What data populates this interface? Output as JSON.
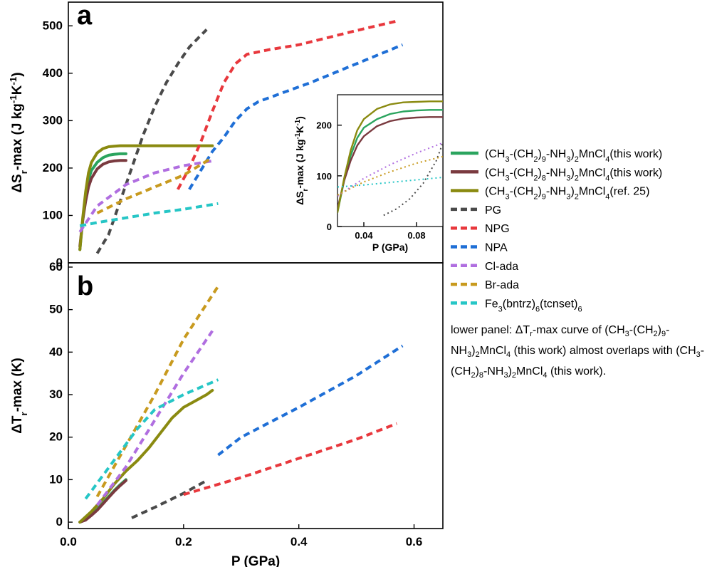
{
  "figure": {
    "note": "lower panel: ΔT_r-max curve of (CH3-(CH2)9-NH3)2MnCl4 (this work) almost overlaps with (CH3-(CH2)8-NH3)2MnCl4 (this work)."
  },
  "legend": [
    {
      "label": "(CH3-(CH2)9-NH3)2MnCl4(this work)",
      "html": "(CH<sub>3</sub>-(CH<sub>2</sub>)<sub>9</sub>-NH<sub>3</sub>)<sub>2</sub>MnCl<sub>4</sub>(this work)",
      "color": "#2aa45e",
      "dash": "solid"
    },
    {
      "label": "(CH3-(CH2)8-NH3)2MnCl4(this work)",
      "html": "(CH<sub>3</sub>-(CH<sub>2</sub>)<sub>8</sub>-NH<sub>3</sub>)<sub>2</sub>MnCl<sub>4</sub>(this work)",
      "color": "#7a3a3f",
      "dash": "solid"
    },
    {
      "label": "(CH3-(CH2)9-NH3)2MnCl4(ref. 25)",
      "html": "(CH<sub>3</sub>-(CH<sub>2</sub>)<sub>9</sub>-NH<sub>3</sub>)<sub>2</sub>MnCl<sub>4</sub>(ref. 25)",
      "color": "#8a8a10",
      "dash": "solid"
    },
    {
      "label": "PG",
      "html": "PG",
      "color": "#4a4a4a",
      "dash": "dash"
    },
    {
      "label": "NPG",
      "html": "NPG",
      "color": "#e8383d",
      "dash": "dash"
    },
    {
      "label": "NPA",
      "html": "NPA",
      "color": "#1f6fd6",
      "dash": "dash"
    },
    {
      "label": "Cl-ada",
      "html": "Cl-ada",
      "color": "#b06ee0",
      "dash": "dash"
    },
    {
      "label": "Br-ada",
      "html": "Br-ada",
      "color": "#c89a1e",
      "dash": "dash"
    },
    {
      "label": "Fe3(bntrz)6(tcnset)6",
      "html": "Fe<sub>3</sub>(bntrz)<sub>6</sub>(tcnset)<sub>6</sub>",
      "color": "#26c6c6",
      "dash": "dash"
    }
  ],
  "chart_data": [
    {
      "panel": "a",
      "type": "line",
      "xlabel": "",
      "ylabel": "ΔSr-max (J kg-1K-1)",
      "xlim": [
        0,
        0.65
      ],
      "ylim": [
        0,
        550
      ],
      "yticks": [
        0,
        100,
        200,
        300,
        400,
        500
      ],
      "series": [
        {
          "name": "(CH3-(CH2)9-NH3)2MnCl4(this work)",
          "x": [
            0.02,
            0.025,
            0.03,
            0.035,
            0.04,
            0.05,
            0.06,
            0.07,
            0.08,
            0.09,
            0.1
          ],
          "y": [
            28,
            90,
            140,
            175,
            195,
            212,
            222,
            227,
            229,
            230,
            230
          ]
        },
        {
          "name": "(CH3-(CH2)8-NH3)2MnCl4(this work)",
          "x": [
            0.02,
            0.025,
            0.03,
            0.035,
            0.04,
            0.05,
            0.06,
            0.07,
            0.08,
            0.09,
            0.1
          ],
          "y": [
            35,
            90,
            130,
            160,
            178,
            198,
            208,
            213,
            215,
            216,
            216
          ]
        },
        {
          "name": "(CH3-(CH2)9-NH3)2MnCl4(ref. 25)",
          "x": [
            0.02,
            0.025,
            0.03,
            0.035,
            0.04,
            0.05,
            0.06,
            0.07,
            0.08,
            0.09,
            0.1,
            0.15,
            0.2,
            0.25
          ],
          "y": [
            28,
            95,
            150,
            190,
            212,
            232,
            241,
            245,
            246,
            247,
            247,
            247,
            247,
            247
          ]
        },
        {
          "name": "PG",
          "x": [
            0.05,
            0.07,
            0.09,
            0.11,
            0.13,
            0.15,
            0.17,
            0.19,
            0.21,
            0.23,
            0.24
          ],
          "y": [
            20,
            60,
            130,
            200,
            270,
            330,
            380,
            420,
            455,
            480,
            492
          ]
        },
        {
          "name": "NPG",
          "x": [
            0.19,
            0.21,
            0.23,
            0.25,
            0.27,
            0.29,
            0.31,
            0.35,
            0.4,
            0.45,
            0.5,
            0.57
          ],
          "y": [
            155,
            200,
            255,
            320,
            380,
            420,
            440,
            450,
            460,
            475,
            490,
            510
          ]
        },
        {
          "name": "NPA",
          "x": [
            0.21,
            0.23,
            0.25,
            0.27,
            0.29,
            0.31,
            0.33,
            0.37,
            0.42,
            0.47,
            0.52,
            0.58
          ],
          "y": [
            155,
            195,
            235,
            265,
            300,
            325,
            340,
            358,
            380,
            405,
            430,
            460
          ]
        },
        {
          "name": "Cl-ada",
          "x": [
            0.02,
            0.05,
            0.1,
            0.15,
            0.2,
            0.25
          ],
          "y": [
            65,
            120,
            165,
            190,
            205,
            215
          ]
        },
        {
          "name": "Br-ada",
          "x": [
            0.05,
            0.1,
            0.15,
            0.2,
            0.25
          ],
          "y": [
            105,
            135,
            160,
            185,
            222
          ]
        },
        {
          "name": "Fe3(bntrz)6(tcnset)6",
          "x": [
            0.02,
            0.05,
            0.1,
            0.15,
            0.2,
            0.26
          ],
          "y": [
            78,
            85,
            95,
            105,
            113,
            125
          ]
        }
      ]
    },
    {
      "panel": "a-inset",
      "type": "line",
      "xlabel": "P (GPa)",
      "ylabel": "ΔSr-max (J kg-1K-1)",
      "xlim": [
        0.02,
        0.1
      ],
      "ylim": [
        0,
        260
      ],
      "xticks": [
        0.04,
        0.08
      ],
      "yticks": [
        0,
        100,
        200
      ],
      "series": [
        {
          "name": "(CH3-(CH2)9-NH3)2MnCl4(this work)",
          "x": [
            0.02,
            0.025,
            0.03,
            0.035,
            0.04,
            0.05,
            0.06,
            0.07,
            0.08,
            0.09,
            0.1
          ],
          "y": [
            28,
            90,
            140,
            175,
            195,
            212,
            222,
            227,
            229,
            230,
            230
          ]
        },
        {
          "name": "(CH3-(CH2)8-NH3)2MnCl4(this work)",
          "x": [
            0.02,
            0.025,
            0.03,
            0.035,
            0.04,
            0.05,
            0.06,
            0.07,
            0.08,
            0.09,
            0.1
          ],
          "y": [
            35,
            90,
            130,
            160,
            178,
            198,
            208,
            213,
            215,
            216,
            216
          ]
        },
        {
          "name": "(CH3-(CH2)9-NH3)2MnCl4(ref. 25)",
          "x": [
            0.02,
            0.025,
            0.03,
            0.035,
            0.04,
            0.05,
            0.06,
            0.07,
            0.08,
            0.09,
            0.1
          ],
          "y": [
            28,
            95,
            150,
            190,
            212,
            232,
            241,
            245,
            246,
            247,
            247
          ]
        },
        {
          "name": "PG",
          "x": [
            0.055,
            0.065,
            0.075,
            0.085,
            0.095,
            0.1
          ],
          "y": [
            22,
            35,
            55,
            85,
            130,
            165
          ]
        },
        {
          "name": "Cl-ada",
          "x": [
            0.02,
            0.04,
            0.06,
            0.08,
            0.1
          ],
          "y": [
            60,
            95,
            122,
            145,
            165
          ]
        },
        {
          "name": "Br-ada",
          "x": [
            0.02,
            0.04,
            0.06,
            0.08,
            0.1
          ],
          "y": [
            62,
            88,
            108,
            125,
            138
          ]
        },
        {
          "name": "Fe3(bntrz)6(tcnset)6",
          "x": [
            0.02,
            0.04,
            0.06,
            0.08,
            0.1
          ],
          "y": [
            78,
            82,
            87,
            92,
            97
          ]
        }
      ]
    },
    {
      "panel": "b",
      "type": "line",
      "xlabel": "P (GPa)",
      "ylabel": "ΔTr-max (K)",
      "xlim": [
        0,
        0.65
      ],
      "ylim": [
        -1.5,
        61
      ],
      "xticks": [
        0.0,
        0.2,
        0.4,
        0.6
      ],
      "yticks": [
        0,
        10,
        20,
        30,
        40,
        50,
        60
      ],
      "series": [
        {
          "name": "(CH3-(CH2)9-NH3)2MnCl4(this work)",
          "x": [
            0.02,
            0.03,
            0.04,
            0.05,
            0.06,
            0.07,
            0.08,
            0.09,
            0.1
          ],
          "y": [
            0,
            0.6,
            1.8,
            3.0,
            4.5,
            6.0,
            7.5,
            8.8,
            10
          ]
        },
        {
          "name": "(CH3-(CH2)8-NH3)2MnCl4(this work)",
          "x": [
            0.02,
            0.03,
            0.04,
            0.05,
            0.06,
            0.07,
            0.08,
            0.09,
            0.1
          ],
          "y": [
            0,
            0.5,
            1.6,
            2.8,
            4.3,
            5.8,
            7.3,
            8.6,
            9.8
          ]
        },
        {
          "name": "(CH3-(CH2)9-NH3)2MnCl4(ref. 25)",
          "x": [
            0.02,
            0.04,
            0.06,
            0.08,
            0.1,
            0.12,
            0.14,
            0.16,
            0.18,
            0.2,
            0.22,
            0.24,
            0.25
          ],
          "y": [
            0,
            2.5,
            5.5,
            9,
            12,
            14.5,
            17.5,
            21,
            24.5,
            27,
            28.5,
            30,
            31
          ]
        },
        {
          "name": "PG",
          "x": [
            0.11,
            0.15,
            0.2,
            0.24
          ],
          "y": [
            1,
            3.5,
            6.8,
            9.8
          ]
        },
        {
          "name": "NPG",
          "x": [
            0.2,
            0.3,
            0.4,
            0.5,
            0.57
          ],
          "y": [
            6.5,
            10.5,
            15,
            19.5,
            23.2
          ]
        },
        {
          "name": "NPA",
          "x": [
            0.26,
            0.3,
            0.4,
            0.5,
            0.58
          ],
          "y": [
            15.8,
            20,
            27,
            34.5,
            41.5
          ]
        },
        {
          "name": "Cl-ada",
          "x": [
            0.05,
            0.1,
            0.15,
            0.2,
            0.25
          ],
          "y": [
            4,
            13,
            24,
            35,
            45
          ]
        },
        {
          "name": "Br-ada",
          "x": [
            0.05,
            0.1,
            0.15,
            0.2,
            0.26
          ],
          "y": [
            6,
            18,
            30,
            43,
            55.5
          ]
        },
        {
          "name": "Fe3(bntrz)6(tcnset)6",
          "x": [
            0.03,
            0.06,
            0.09,
            0.12,
            0.15,
            0.2,
            0.26
          ],
          "y": [
            5.5,
            11,
            16.5,
            22,
            26.5,
            30,
            33.5
          ]
        }
      ]
    }
  ]
}
